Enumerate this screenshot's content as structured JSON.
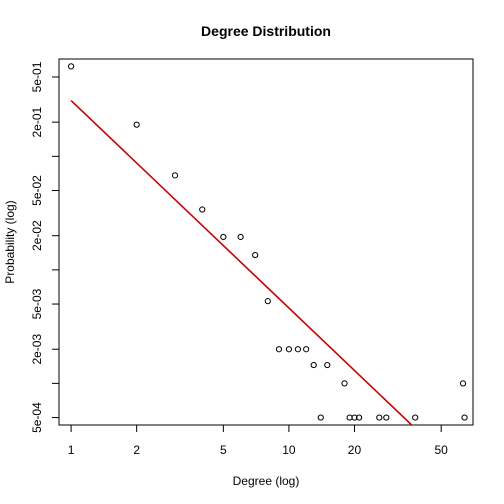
{
  "chart_data": {
    "type": "scatter",
    "title": "Degree Distribution",
    "xlabel": "Degree (log)",
    "ylabel": "Probability (log)",
    "x_scale": "log",
    "y_scale": "log",
    "xlim": [
      0.88,
      70
    ],
    "ylim": [
      0.00043,
      0.72
    ],
    "x_ticks": [
      1,
      2,
      5,
      10,
      20,
      50
    ],
    "x_tick_labels": [
      "1",
      "2",
      "5",
      "10",
      "20",
      "50"
    ],
    "y_ticks": [
      0.0005,
      0.001,
      0.002,
      0.005,
      0.01,
      0.02,
      0.05,
      0.1,
      0.2,
      0.5
    ],
    "y_tick_labels": [
      "5e-04",
      "",
      "2e-03",
      "5e-03",
      "",
      "2e-02",
      "5e-02",
      "",
      "2e-01",
      "5e-01"
    ],
    "grid": false,
    "points": [
      {
        "x": 1,
        "y": 0.62
      },
      {
        "x": 2,
        "y": 0.19
      },
      {
        "x": 3,
        "y": 0.068
      },
      {
        "x": 4,
        "y": 0.034
      },
      {
        "x": 5,
        "y": 0.0195
      },
      {
        "x": 6,
        "y": 0.0195
      },
      {
        "x": 7,
        "y": 0.0135
      },
      {
        "x": 8,
        "y": 0.0053
      },
      {
        "x": 9,
        "y": 0.002
      },
      {
        "x": 10,
        "y": 0.002
      },
      {
        "x": 11,
        "y": 0.002
      },
      {
        "x": 12,
        "y": 0.002
      },
      {
        "x": 13,
        "y": 0.00145
      },
      {
        "x": 14,
        "y": 0.0005
      },
      {
        "x": 15,
        "y": 0.00145
      },
      {
        "x": 18,
        "y": 0.001
      },
      {
        "x": 19,
        "y": 0.0005
      },
      {
        "x": 20,
        "y": 0.0005
      },
      {
        "x": 21,
        "y": 0.0005
      },
      {
        "x": 26,
        "y": 0.0005
      },
      {
        "x": 28,
        "y": 0.0005
      },
      {
        "x": 38,
        "y": 0.0005
      },
      {
        "x": 63,
        "y": 0.001
      },
      {
        "x": 64,
        "y": 0.0005
      }
    ],
    "fit_line": {
      "color": "#cc0000",
      "start": {
        "x": 1,
        "y": 0.31
      },
      "end": {
        "x": 64,
        "y": 0.000155
      }
    },
    "point_color": "#000000"
  }
}
